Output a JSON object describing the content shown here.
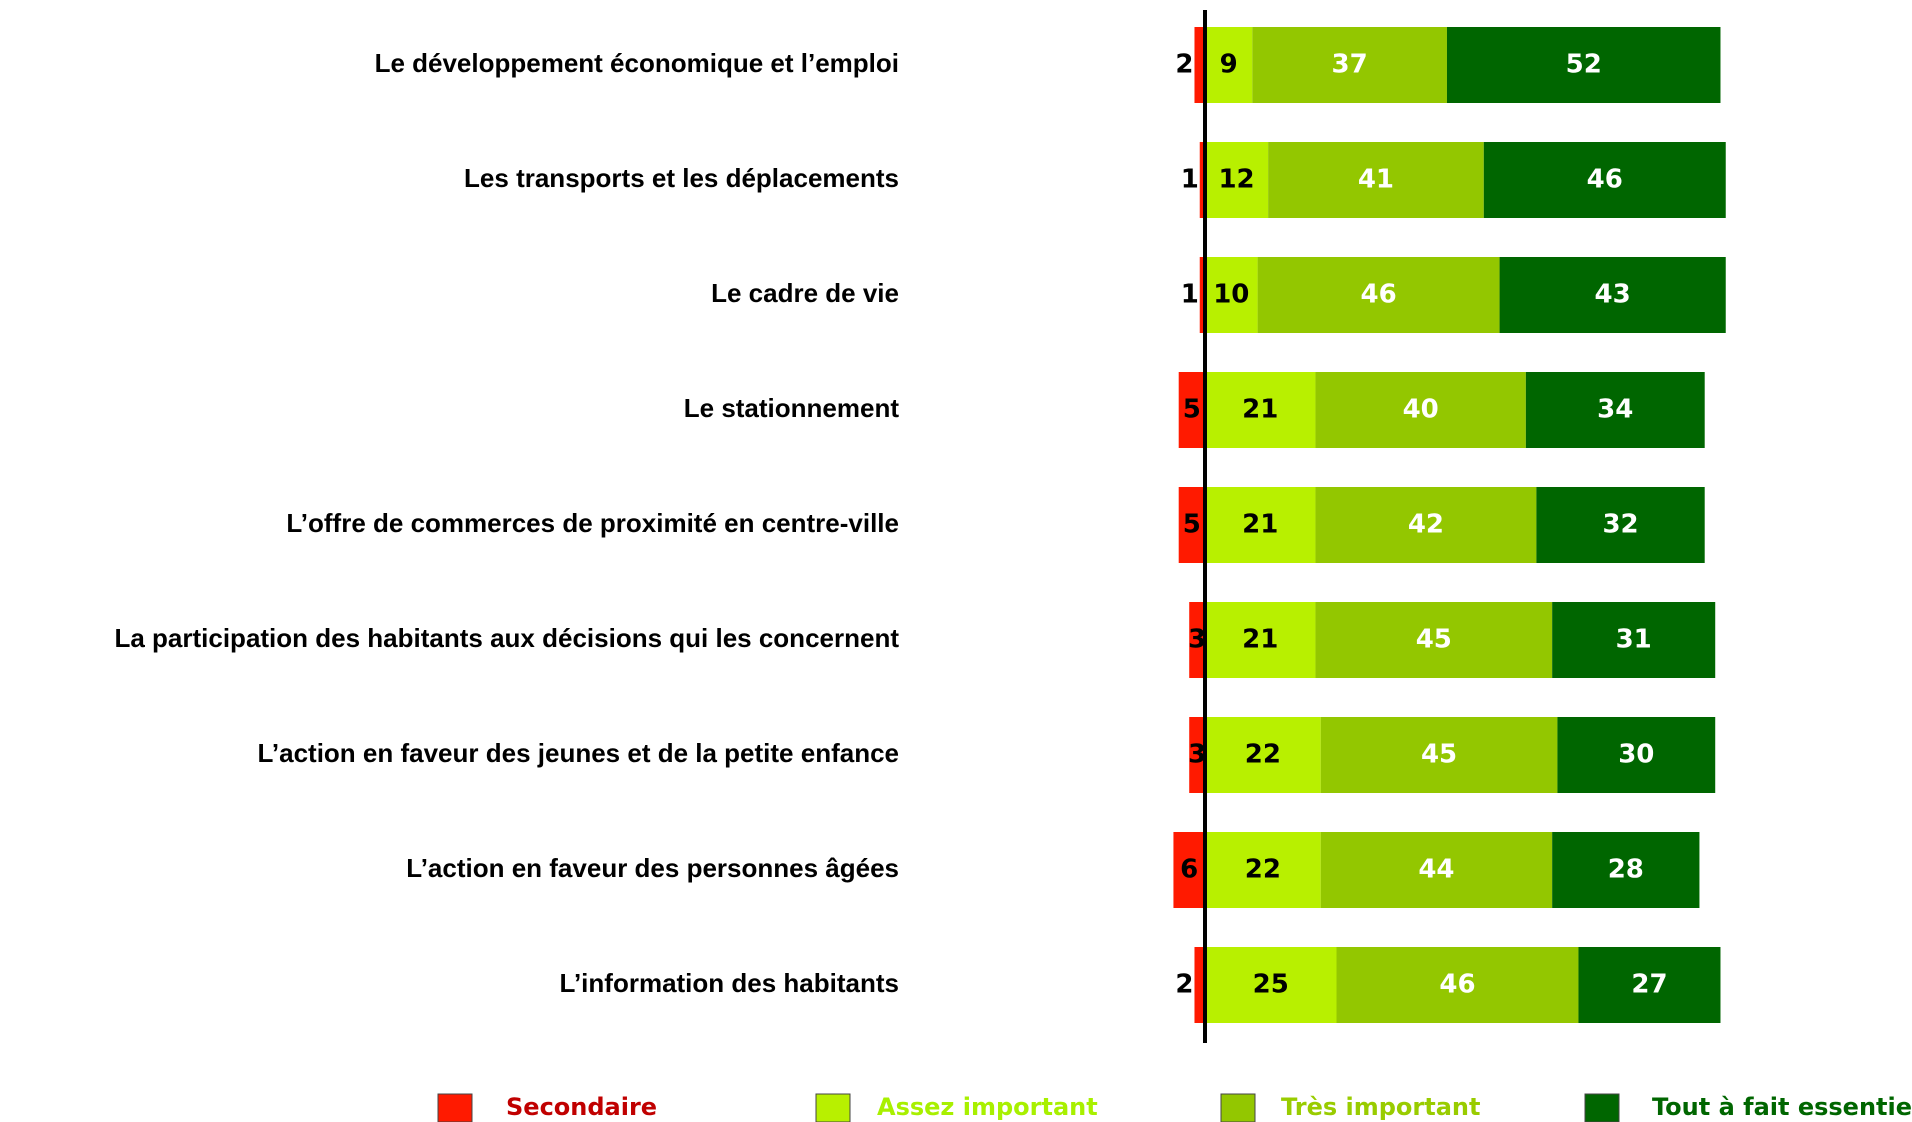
{
  "chart_data": {
    "type": "bar",
    "categories": [
      "Le développement économique et l’emploi",
      "Les transports et les déplacements",
      "Le cadre de vie",
      "Le stationnement",
      "L’offre de commerces de proximité en centre-ville",
      "La participation des habitants aux décisions qui les concernent",
      "L’action en faveur des jeunes et de la petite enfance",
      "L’action en faveur des personnes âgées",
      "L’information des habitants"
    ],
    "series": [
      {
        "name": "Secondaire",
        "color": "#ff1a00",
        "values": [
          2,
          1,
          1,
          5,
          5,
          3,
          3,
          6,
          2
        ]
      },
      {
        "name": "Assez important",
        "color": "#b8f000",
        "values": [
          9,
          12,
          10,
          21,
          21,
          21,
          22,
          22,
          25
        ]
      },
      {
        "name": "Très important",
        "color": "#93c700",
        "values": [
          37,
          41,
          46,
          40,
          42,
          45,
          45,
          44,
          46
        ]
      },
      {
        "name": "Tout à fait essentiel",
        "color": "#006600",
        "values": [
          52,
          46,
          43,
          34,
          32,
          31,
          30,
          28,
          27
        ]
      }
    ],
    "legend": "bottom"
  }
}
